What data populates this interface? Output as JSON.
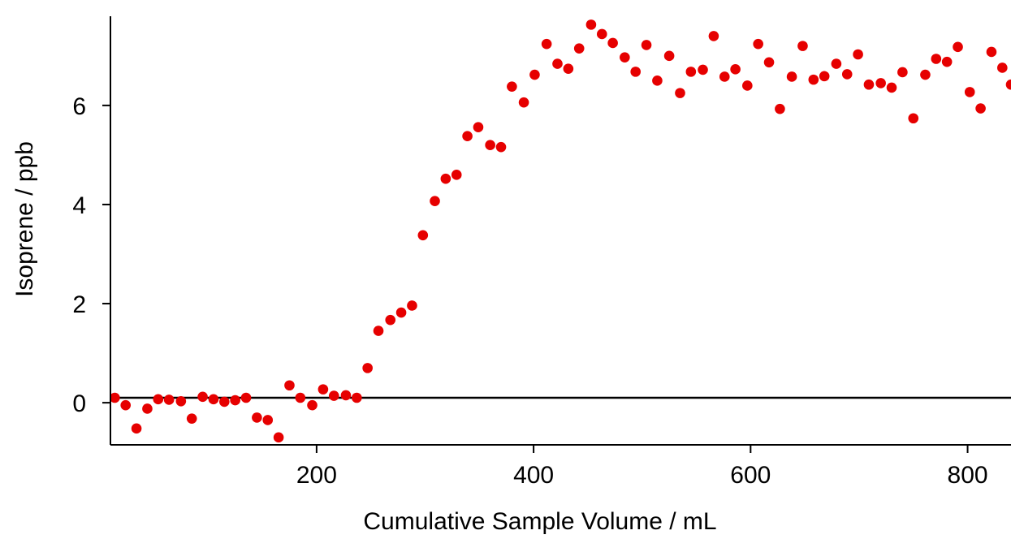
{
  "chart_data": {
    "type": "scatter",
    "xlabel": "Cumulative Sample Volume / mL",
    "ylabel": "Isoprene / ppb",
    "xlim": [
      10,
      840
    ],
    "ylim": [
      -0.85,
      7.8
    ],
    "x_ticks": [
      200,
      400,
      600,
      800
    ],
    "y_ticks": [
      0,
      2,
      4,
      6
    ],
    "grid": false,
    "colors": {
      "points": "#e60000",
      "baseline": "#000000",
      "axes": "#000000"
    },
    "baseline_y": 0.1,
    "series": [
      {
        "x": [
          14,
          24,
          34,
          44,
          54,
          64,
          75,
          85,
          95,
          105,
          115,
          125,
          135,
          145,
          155,
          165,
          175,
          185,
          196,
          206,
          216,
          227,
          237,
          247,
          257,
          268,
          278,
          288,
          298,
          309,
          319,
          329,
          339,
          349,
          360,
          370,
          380,
          391,
          401,
          412,
          422,
          432,
          442,
          453,
          463,
          473,
          484,
          494,
          504,
          514,
          525,
          535,
          545,
          556,
          566,
          576,
          586,
          597,
          607,
          617,
          627,
          638,
          648,
          658,
          668,
          679,
          689,
          699,
          709,
          720,
          730,
          740,
          750,
          761,
          771,
          781,
          791,
          802,
          812,
          822,
          832,
          840
        ],
        "values": [
          0.1,
          -0.05,
          -0.52,
          -0.12,
          0.07,
          0.06,
          0.03,
          -0.32,
          0.12,
          0.07,
          0.02,
          0.05,
          0.1,
          -0.3,
          -0.35,
          -0.7,
          0.35,
          0.1,
          -0.05,
          0.27,
          0.14,
          0.15,
          0.1,
          0.7,
          1.45,
          1.67,
          1.82,
          1.96,
          3.38,
          4.07,
          4.52,
          4.6,
          5.38,
          5.56,
          5.2,
          5.16,
          6.38,
          6.06,
          6.62,
          7.24,
          6.84,
          6.74,
          7.15,
          7.63,
          7.44,
          7.26,
          6.97,
          6.68,
          7.22,
          6.5,
          7.0,
          6.25,
          6.68,
          6.72,
          7.4,
          6.58,
          6.73,
          6.4,
          7.24,
          6.87,
          5.93,
          6.58,
          7.2,
          6.52,
          6.59,
          6.84,
          6.63,
          7.03,
          6.42,
          6.45,
          6.36,
          6.67,
          5.74,
          6.62,
          6.94,
          6.88,
          7.18,
          6.27,
          5.94,
          7.08,
          6.76,
          6.42
        ]
      }
    ]
  }
}
